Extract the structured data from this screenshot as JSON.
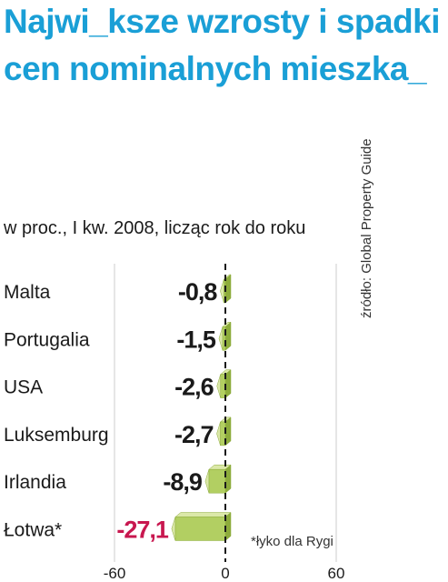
{
  "title": "Najwi_ksze wzrosty i spadki cen nominalnych mieszka_",
  "subtitle": "w proc., I kw. 2008, licząc rok do roku",
  "source": "źródło: Global Property Guide",
  "note": "*łyko dla Rygi",
  "colors": {
    "title": "#1a9fd6",
    "bar_front": "#b2cf62",
    "bar_top": "#dbe8a8",
    "bar_side": "#8dac3c",
    "axis_grid": "#cccccc",
    "highlight_label": "#c8174f"
  },
  "chart_data": {
    "type": "bar",
    "orientation": "horizontal",
    "categories": [
      "Malta",
      "Portugalia",
      "USA",
      "Luksemburg",
      "Irlandia",
      "Łotwa*"
    ],
    "values": [
      -0.8,
      -1.5,
      -2.6,
      -2.7,
      -8.9,
      -27.1
    ],
    "value_labels": [
      "-0,8",
      "-1,5",
      "-2,6",
      "-2,7",
      "-8,9",
      "-27,1"
    ],
    "highlight_index": 5,
    "xlim": [
      -60,
      60
    ],
    "xticks": [
      -60,
      0,
      60
    ],
    "xtick_labels": [
      "-60",
      "0",
      "60"
    ],
    "grid": true,
    "zero_line": "dashed"
  }
}
